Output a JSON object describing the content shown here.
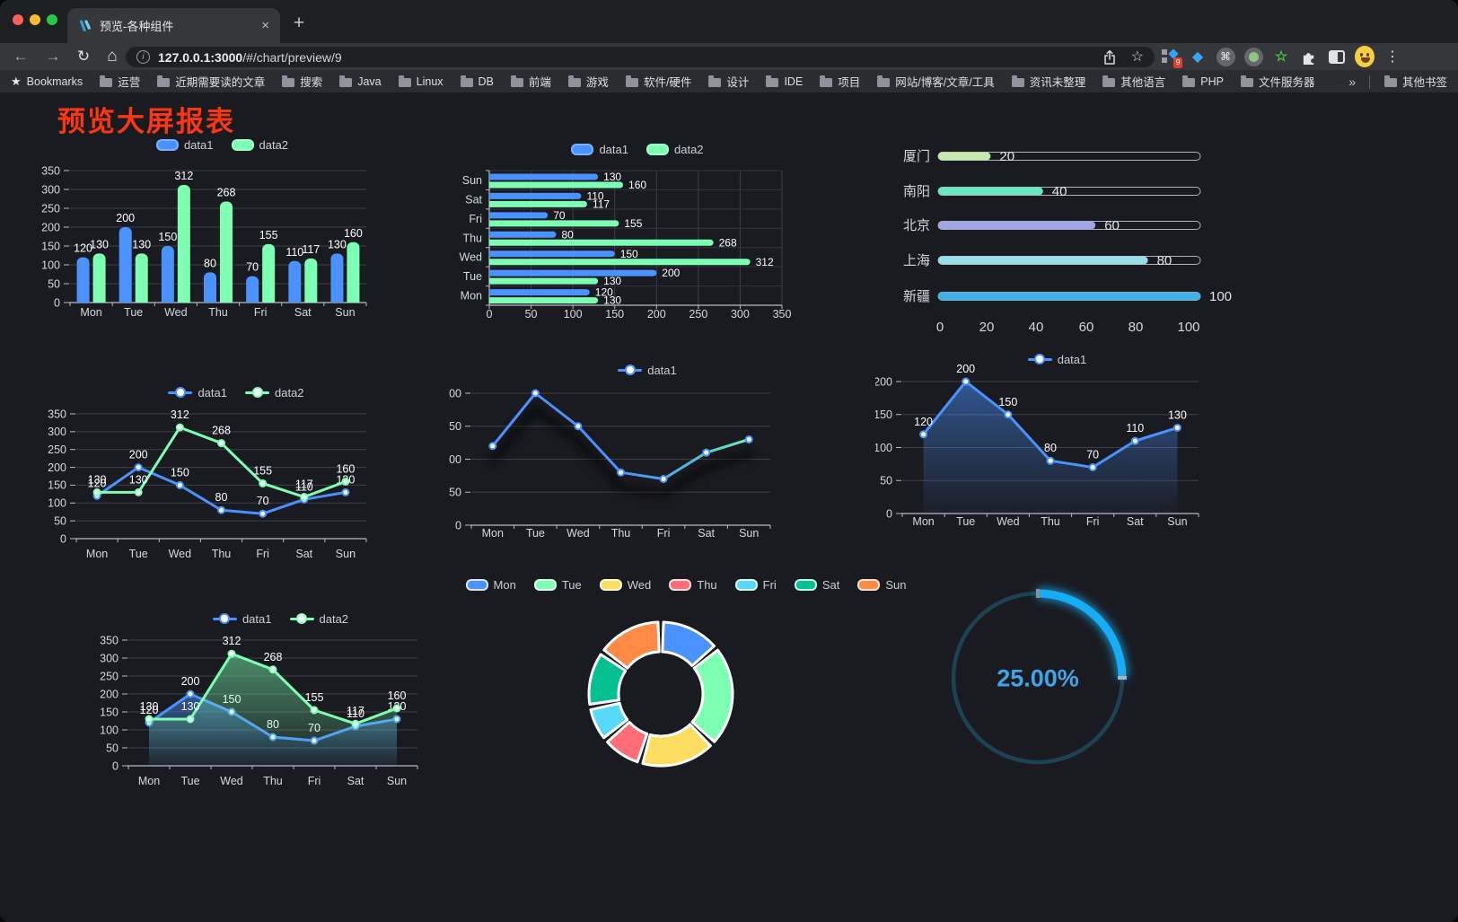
{
  "browser": {
    "tab_title": "预览-各种组件",
    "url": {
      "host": "127.0.0.1:3000",
      "path": "/#/chart/preview/9"
    },
    "bookmarks_label": "Bookmarks",
    "bookmarks": [
      "运营",
      "近期需要读的文章",
      "搜索",
      "Java",
      "Linux",
      "DB",
      "前端",
      "游戏",
      "软件/硬件",
      "设计",
      "IDE",
      "项目",
      "网站/博客/文章/工具",
      "资讯未整理",
      "其他语言",
      "PHP",
      "文件服务器"
    ],
    "overflow_chevron": "»",
    "other_bookmarks": "其他书签",
    "extension_badge": "9",
    "icons": {
      "back": "←",
      "forward": "→",
      "reload": "↻",
      "home": "⌂",
      "info": "i",
      "star": "☆",
      "plus": "+",
      "close": "×",
      "menu": "⋮",
      "gem": "◆",
      "command": "⌘",
      "green_star": "☆",
      "separator": "│",
      "bookmarks_star": "★"
    }
  },
  "page": {
    "title": "预览大屏报表",
    "title_color": "#fb3711",
    "background": "#1a1b20"
  },
  "chart_data": [
    {
      "id": "bar-vertical",
      "type": "bar",
      "orientation": "vertical",
      "categories": [
        "Mon",
        "Tue",
        "Wed",
        "Thu",
        "Fri",
        "Sat",
        "Sun"
      ],
      "series": [
        {
          "name": "data1",
          "color": "#4992ff",
          "values": [
            120,
            200,
            150,
            80,
            70,
            110,
            130
          ]
        },
        {
          "name": "data2",
          "color": "#7cffb2",
          "values": [
            130,
            130,
            312,
            268,
            155,
            117,
            160
          ]
        }
      ],
      "ylim": [
        0,
        350
      ],
      "ytick_step": 50,
      "legend_position": "top",
      "value_labels": true,
      "grid": true
    },
    {
      "id": "bar-horizontal",
      "type": "bar",
      "orientation": "horizontal",
      "categories": [
        "Mon",
        "Tue",
        "Wed",
        "Thu",
        "Fri",
        "Sat",
        "Sun"
      ],
      "category_axis_top_to_bottom": [
        "Sun",
        "Sat",
        "Fri",
        "Thu",
        "Wed",
        "Tue",
        "Mon"
      ],
      "series": [
        {
          "name": "data1",
          "color": "#4992ff",
          "values": [
            120,
            200,
            150,
            80,
            70,
            110,
            130
          ]
        },
        {
          "name": "data2",
          "color": "#7cffb2",
          "values": [
            130,
            130,
            312,
            268,
            155,
            117,
            160
          ]
        }
      ],
      "xlim": [
        0,
        350
      ],
      "xtick_step": 50,
      "legend_position": "top",
      "value_labels": true,
      "grid": true
    },
    {
      "id": "progress-bars",
      "type": "bar",
      "subtype": "progress",
      "max": 100,
      "xticks": [
        0,
        20,
        40,
        60,
        80,
        100
      ],
      "items": [
        {
          "label": "厦门",
          "value": 20,
          "color": "#c4ebad"
        },
        {
          "label": "南阳",
          "value": 40,
          "color": "#6be6c1"
        },
        {
          "label": "北京",
          "value": 60,
          "color": "#a0a7e6"
        },
        {
          "label": "上海",
          "value": 80,
          "color": "#96dee8"
        },
        {
          "label": "新疆",
          "value": 100,
          "color": "#3fb1e3"
        }
      ]
    },
    {
      "id": "line-basic",
      "type": "line",
      "categories": [
        "Mon",
        "Tue",
        "Wed",
        "Thu",
        "Fri",
        "Sat",
        "Sun"
      ],
      "series": [
        {
          "name": "data1",
          "color": "#4992ff",
          "values": [
            120,
            200,
            150,
            80,
            70,
            110,
            130
          ]
        },
        {
          "name": "data2",
          "color": "#7cffb2",
          "values": [
            130,
            130,
            312,
            268,
            155,
            117,
            160
          ]
        }
      ],
      "ylim": [
        0,
        350
      ],
      "ytick_step": 50,
      "legend_position": "top",
      "value_labels": true,
      "grid": true
    },
    {
      "id": "line-gradient",
      "type": "line",
      "categories": [
        "Mon",
        "Tue",
        "Wed",
        "Thu",
        "Fri",
        "Sat",
        "Sun"
      ],
      "series": [
        {
          "name": "data1",
          "color": "#4992ff",
          "gradient": [
            "#4992ff",
            "#4fc3d0",
            "#7cffb2"
          ],
          "values": [
            120,
            200,
            150,
            80,
            70,
            110,
            130
          ]
        }
      ],
      "ylim": [
        0,
        200
      ],
      "ytick_step": 50,
      "legend_position": "top",
      "value_labels": false,
      "shadow": true,
      "grid": true
    },
    {
      "id": "line-area",
      "type": "line",
      "categories": [
        "Mon",
        "Tue",
        "Wed",
        "Thu",
        "Fri",
        "Sat",
        "Sun"
      ],
      "series": [
        {
          "name": "data1",
          "color": "#4992ff",
          "area": true,
          "values": [
            120,
            200,
            150,
            80,
            70,
            110,
            130
          ]
        }
      ],
      "ylim": [
        0,
        200
      ],
      "ytick_step": 50,
      "legend_position": "top",
      "value_labels": true,
      "grid": true
    },
    {
      "id": "line-area-double",
      "type": "line",
      "categories": [
        "Mon",
        "Tue",
        "Wed",
        "Thu",
        "Fri",
        "Sat",
        "Sun"
      ],
      "series": [
        {
          "name": "data1",
          "color": "#4992ff",
          "area": true,
          "values": [
            120,
            200,
            150,
            80,
            70,
            110,
            130
          ]
        },
        {
          "name": "data2",
          "color": "#7cffb2",
          "area": true,
          "values": [
            130,
            130,
            312,
            268,
            155,
            117,
            160
          ]
        }
      ],
      "ylim": [
        0,
        350
      ],
      "ytick_step": 50,
      "legend_position": "top",
      "value_labels": true,
      "grid": true
    },
    {
      "id": "donut",
      "type": "pie",
      "inner_radius_ratio": 0.59,
      "categories": [
        "Mon",
        "Tue",
        "Wed",
        "Thu",
        "Fri",
        "Sat",
        "Sun"
      ],
      "values": [
        120,
        200,
        150,
        80,
        70,
        110,
        130
      ],
      "colors": [
        "#4992ff",
        "#7cffb2",
        "#fddd60",
        "#ff6e76",
        "#58d9f9",
        "#05c091",
        "#ff8a45"
      ],
      "border_color": "#ffffff",
      "legend_position": "top"
    },
    {
      "id": "gauge",
      "type": "gauge",
      "value": 25,
      "min": 0,
      "max": 100,
      "display": "25.00%",
      "arc_color": "#18acf5",
      "track_color": "#1c4351",
      "text_color": "#3fa5e8"
    }
  ]
}
